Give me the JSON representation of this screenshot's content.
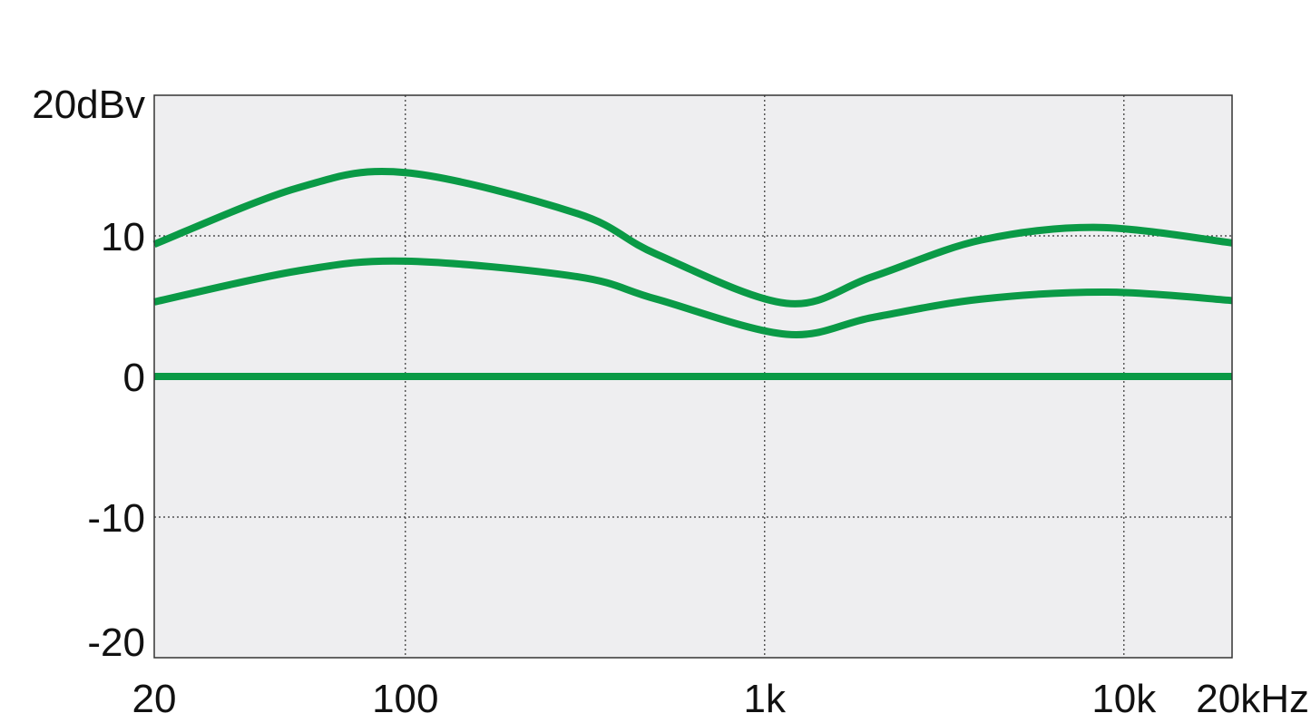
{
  "chart_data": {
    "type": "line",
    "title": "",
    "xlabel": "",
    "ylabel": "",
    "x_scale": "log",
    "xlim": [
      20,
      20000
    ],
    "ylim": [
      -20,
      20
    ],
    "grid": true,
    "x_ticks": [
      {
        "value": 20,
        "label": "20"
      },
      {
        "value": 100,
        "label": "100"
      },
      {
        "value": 1000,
        "label": "1k"
      },
      {
        "value": 10000,
        "label": "10k"
      },
      {
        "value": 20000,
        "label": "20kHz"
      }
    ],
    "y_ticks": [
      {
        "value": 20,
        "label": "20dBv"
      },
      {
        "value": 10,
        "label": "10"
      },
      {
        "value": 0,
        "label": "0"
      },
      {
        "value": -10,
        "label": "-10"
      },
      {
        "value": -20,
        "label": "-20"
      }
    ],
    "colors": {
      "line": "#0a9a46",
      "plot_bg": "#eeeef0",
      "frame": "#333333",
      "grid": "#333333"
    },
    "series": [
      {
        "x": [
          20,
          50,
          100,
          300,
          500,
          1150,
          2000,
          4000,
          8500,
          20000
        ],
        "y": [
          9.4,
          13.4,
          14.5,
          11.6,
          8.7,
          5.2,
          7.1,
          9.7,
          10.6,
          9.5
        ]
      },
      {
        "x": [
          20,
          50,
          100,
          300,
          500,
          1150,
          2000,
          4000,
          9000,
          20000
        ],
        "y": [
          5.3,
          7.5,
          8.2,
          7.1,
          5.5,
          3.0,
          4.2,
          5.5,
          6.0,
          5.4
        ]
      },
      {
        "x": [
          20,
          20000
        ],
        "y": [
          0,
          0
        ]
      }
    ]
  }
}
